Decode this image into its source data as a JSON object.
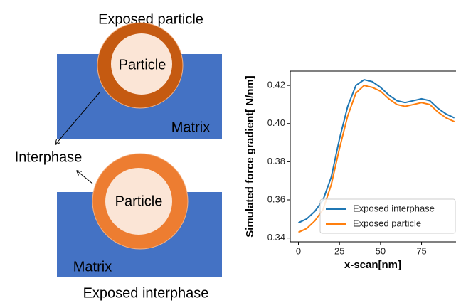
{
  "diagram": {
    "top_caption": "Exposed particle",
    "top_particle": "Particle",
    "top_matrix": "Matrix",
    "interphase_label": "Interphase",
    "bottom_particle": "Particle",
    "bottom_matrix": "Matrix",
    "bottom_caption": "Exposed interphase"
  },
  "chart_data": {
    "type": "line",
    "xlabel": "x-scan[nm]",
    "ylabel": "Simulated force gradient[ N/nm]",
    "x": [
      0,
      5,
      10,
      15,
      20,
      25,
      30,
      35,
      40,
      45,
      50,
      55,
      60,
      65,
      70,
      75,
      80,
      85,
      90,
      95
    ],
    "series": [
      {
        "name": "Exposed interphase",
        "color": "#1f77b4",
        "values": [
          0.348,
          0.35,
          0.354,
          0.36,
          0.372,
          0.392,
          0.409,
          0.42,
          0.423,
          0.422,
          0.419,
          0.415,
          0.412,
          0.411,
          0.412,
          0.413,
          0.412,
          0.408,
          0.405,
          0.403
        ]
      },
      {
        "name": "Exposed particle",
        "color": "#ff7f0e",
        "values": [
          0.343,
          0.345,
          0.349,
          0.355,
          0.368,
          0.387,
          0.404,
          0.416,
          0.42,
          0.419,
          0.417,
          0.413,
          0.41,
          0.409,
          0.41,
          0.411,
          0.41,
          0.406,
          0.403,
          0.401
        ]
      }
    ],
    "xlim": [
      -5,
      96
    ],
    "ylim": [
      0.338,
      0.4275
    ],
    "xticks": [
      0,
      25,
      50,
      75
    ],
    "yticks": [
      0.34,
      0.36,
      0.38,
      {
        "value": 0.4,
        "label": "0.40"
      },
      0.42
    ],
    "legend": "lower right"
  }
}
